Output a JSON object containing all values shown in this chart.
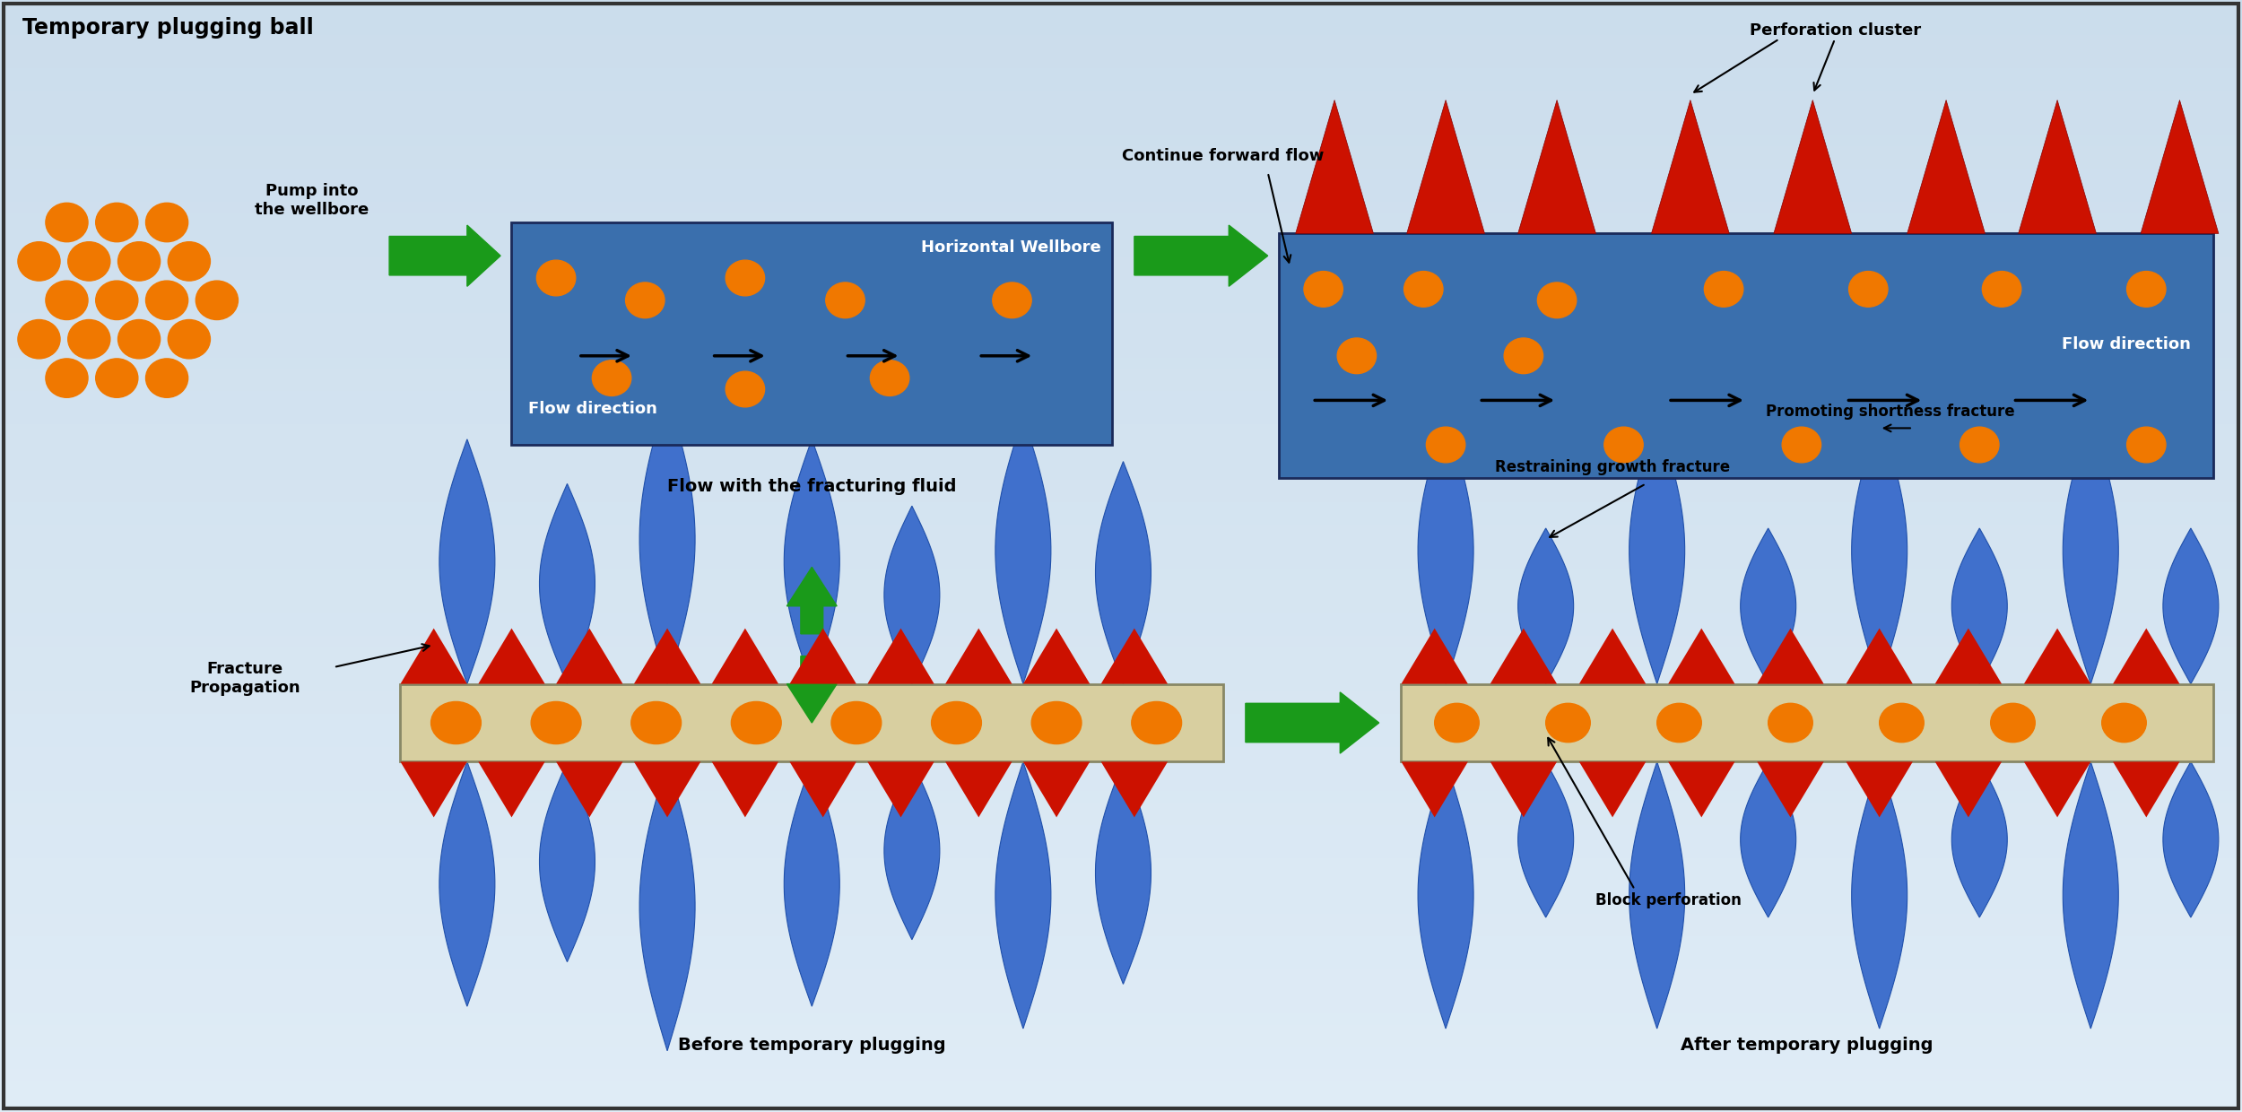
{
  "ball_color": "#f07800",
  "wellbore_color": "#3a6fad",
  "arrow_color": "#1a9a1a",
  "red_triangle_color": "#cc1100",
  "blue_fracture_color": "#4070cc",
  "tube_color": "#d8cfa0",
  "title_text": "Temporary plugging ball",
  "label_pump": "Pump into\nthe wellbore",
  "label_flow1": "Flow with the fracturing fluid",
  "label_hw": "Horizontal Wellbore",
  "label_fd1": "Flow direction",
  "label_fd2": "Flow direction",
  "label_cff": "Continue forward flow",
  "label_pc": "Perforation cluster",
  "label_fp": "Fracture\nPropagation",
  "label_before": "Before temporary plugging",
  "label_after": "After temporary plugging",
  "label_block": "Block perforation",
  "label_restrain": "Restraining growth fracture",
  "label_promote": "Promoting shortness fracture"
}
